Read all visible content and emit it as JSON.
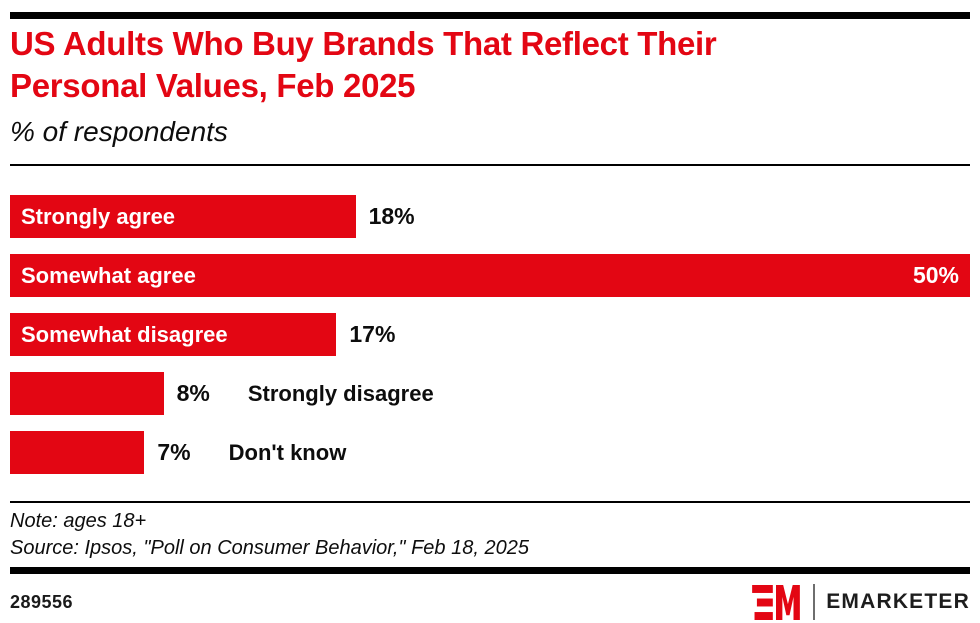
{
  "header": {
    "title_line1": "US Adults Who Buy Brands That Reflect Their",
    "title_line2": "Personal Values, Feb 2025",
    "subtitle": "% of respondents"
  },
  "chart_data": {
    "type": "bar",
    "orientation": "horizontal",
    "title": "US Adults Who Buy Brands That Reflect Their Personal Values, Feb 2025",
    "subtitle": "% of respondents",
    "categories": [
      "Strongly agree",
      "Somewhat agree",
      "Somewhat disagree",
      "Strongly disagree",
      "Don't know"
    ],
    "values": [
      18,
      50,
      17,
      8,
      7
    ],
    "value_labels": [
      "18%",
      "50%",
      "17%",
      "8%",
      "7%"
    ],
    "xlim": [
      0,
      50
    ],
    "grid": false,
    "legend": false,
    "bar_color": "#e30613",
    "label_color_inside": "#ffffff",
    "label_color_outside": "#0d0d0d"
  },
  "footer": {
    "note": "Note: ages 18+",
    "source": "Source: Ipsos, \"Poll on Consumer Behavior,\" Feb 18, 2025",
    "chart_id": "289556",
    "logo_mark": "EM-logo",
    "logo_text": "EMARKETER"
  },
  "colors": {
    "brand_red": "#e30613",
    "rule_black": "#000000",
    "text_black": "#0d0d0d",
    "logo_divider": "#6e6e6e"
  }
}
